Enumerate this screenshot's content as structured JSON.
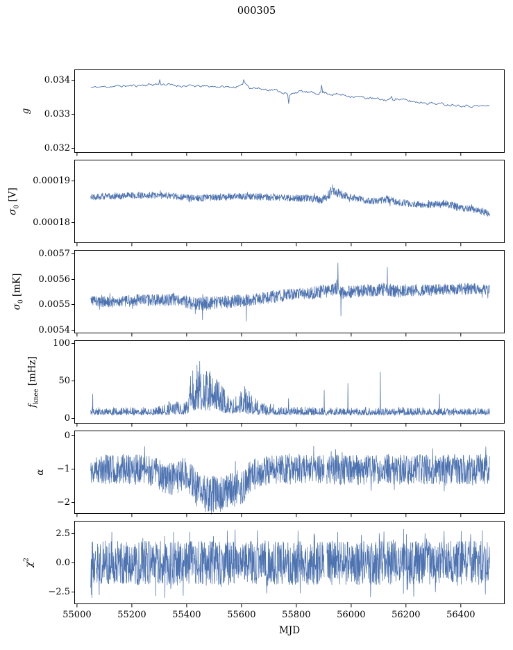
{
  "title": "000305",
  "accent_color": "#4c72b0",
  "axis_color": "#000000",
  "chart_data": {
    "type": "line",
    "title": "000305",
    "xlabel": "MJD",
    "xlim": [
      54990,
      56560
    ],
    "xticks": [
      55000,
      55200,
      55400,
      55600,
      55800,
      56000,
      56200,
      56400
    ],
    "xtick_labels": [
      "55000",
      "55200",
      "55400",
      "55600",
      "55800",
      "56000",
      "56200",
      "56400"
    ],
    "data_x_range": [
      55050,
      56505
    ],
    "line_color": "#4c72b0",
    "grid": false,
    "legend": "none",
    "panels": [
      {
        "id": "g",
        "ylabel": {
          "main": "g",
          "sub": "",
          "sup": "",
          "unit": ""
        },
        "ylim": [
          0.03185,
          0.0343
        ],
        "ytick_vals": [
          0.032,
          0.033,
          0.034
        ],
        "ytick_labels": [
          "0.032",
          "0.033",
          "0.034"
        ],
        "noise": "smooth",
        "samples": 400,
        "seed": 11,
        "stroke": 0.9,
        "tail": 0,
        "series": {
          "x": [
            55050,
            55120,
            55200,
            55260,
            55310,
            55350,
            55420,
            55500,
            55560,
            55600,
            55610,
            55630,
            55680,
            55720,
            55760,
            55775,
            55790,
            55820,
            55860,
            55900,
            55930,
            55970,
            56010,
            56050,
            56090,
            56130,
            56160,
            56190,
            56230,
            56270,
            56310,
            56350,
            56390,
            56430,
            56470,
            56505
          ],
          "mean": [
            0.03378,
            0.03381,
            0.03383,
            0.03386,
            0.03389,
            0.03384,
            0.03382,
            0.03381,
            0.03379,
            0.03381,
            0.03394,
            0.03379,
            0.03373,
            0.03371,
            0.03362,
            0.03352,
            0.03364,
            0.03366,
            0.03361,
            0.03364,
            0.03359,
            0.03356,
            0.03352,
            0.03348,
            0.03344,
            0.03341,
            0.03346,
            0.03341,
            0.03336,
            0.03334,
            0.03331,
            0.03328,
            0.03327,
            0.03324,
            0.03323,
            0.03324
          ],
          "amp": [
            2.5e-05,
            2.5e-05,
            2.8e-05,
            3.5e-05,
            3.8e-05,
            3e-05,
            2.8e-05,
            2.5e-05,
            2.5e-05,
            3e-05,
            4e-05,
            3e-05,
            2.8e-05,
            2.8e-05,
            3e-05,
            3.5e-05,
            3e-05,
            3e-05,
            3.2e-05,
            3.8e-05,
            3.5e-05,
            3.2e-05,
            3e-05,
            3e-05,
            3e-05,
            3.2e-05,
            3.5e-05,
            3.2e-05,
            3e-05,
            3e-05,
            3e-05,
            3e-05,
            3e-05,
            2.8e-05,
            2.5e-05,
            2.5e-05
          ]
        },
        "spikes": [
          [
            55302,
            0.03401
          ],
          [
            55608,
            0.03401
          ],
          [
            55772,
            0.03331
          ],
          [
            55893,
            0.03385
          ],
          [
            56148,
            0.03352
          ]
        ],
        "gaps": []
      },
      {
        "id": "sigma0_V",
        "ylabel": {
          "main": "σ",
          "sub": "0",
          "sup": "",
          "unit": " [V]"
        },
        "ylim": [
          0.000175,
          0.000195
        ],
        "ytick_vals": [
          0.00018,
          0.00019
        ],
        "ytick_labels": [
          "0.00018",
          "0.00019"
        ],
        "noise": "uniform",
        "samples": 1600,
        "seed": 22,
        "stroke": 0.75,
        "tail": 0.02,
        "series": {
          "x": [
            55050,
            55150,
            55250,
            55350,
            55420,
            55500,
            55600,
            55700,
            55780,
            55850,
            55890,
            55915,
            55930,
            55945,
            55965,
            55990,
            56020,
            56060,
            56100,
            56130,
            56150,
            56180,
            56220,
            56260,
            56300,
            56340,
            56370,
            56400,
            56440,
            56470,
            56505
          ],
          "mean": [
            0.0001862,
            0.0001864,
            0.0001866,
            0.0001864,
            0.0001858,
            0.0001861,
            0.0001863,
            0.0001861,
            0.0001859,
            0.0001858,
            0.0001854,
            0.0001864,
            0.0001876,
            0.0001873,
            0.0001867,
            0.0001862,
            0.0001858,
            0.0001853,
            0.0001851,
            0.0001856,
            0.0001852,
            0.0001848,
            0.0001845,
            0.0001842,
            0.0001843,
            0.0001846,
            0.0001841,
            0.0001835,
            0.0001832,
            0.0001827,
            0.0001822
          ],
          "amp": [
            8e-07,
            8e-07,
            8e-07,
            8e-07,
            9e-07,
            8e-07,
            8e-07,
            8e-07,
            8e-07,
            9e-07,
            1e-06,
            1.2e-06,
            1.2e-06,
            1.1e-06,
            1e-06,
            9e-07,
            8e-07,
            8e-07,
            8e-07,
            9e-07,
            9e-07,
            8e-07,
            8e-07,
            8e-07,
            8e-07,
            9e-07,
            9e-07,
            9e-07,
            8e-07,
            8e-07,
            8e-07
          ]
        },
        "spikes": [
          [
            55933,
            0.0001891
          ],
          [
            55412,
            0.0001849
          ]
        ],
        "gaps": []
      },
      {
        "id": "sigma0_mK",
        "ylabel": {
          "main": "σ",
          "sub": "0",
          "sup": "",
          "unit": " [mK]"
        },
        "ylim": [
          0.005385,
          0.005715
        ],
        "ytick_vals": [
          0.0054,
          0.0055,
          0.0056,
          0.0057
        ],
        "ytick_labels": [
          "0.0054",
          "0.0055",
          "0.0056",
          "0.0057"
        ],
        "noise": "uniform",
        "samples": 1600,
        "seed": 33,
        "stroke": 0.75,
        "tail": 0.03,
        "series": {
          "x": [
            55050,
            55100,
            55150,
            55220,
            55300,
            55360,
            55420,
            55460,
            55510,
            55560,
            55610,
            55660,
            55710,
            55760,
            55810,
            55860,
            55900,
            55930,
            55950,
            55970,
            55990,
            56020,
            56060,
            56100,
            56130,
            56160,
            56200,
            56250,
            56300,
            56350,
            56400,
            56450,
            56505
          ],
          "mean": [
            0.005518,
            0.00551,
            0.005512,
            0.005516,
            0.005518,
            0.005519,
            0.005506,
            0.005504,
            0.005508,
            0.005512,
            0.005516,
            0.005524,
            0.00553,
            0.005537,
            0.005542,
            0.005546,
            0.005552,
            0.005556,
            0.00556,
            0.005548,
            0.00555,
            0.005553,
            0.005556,
            0.005558,
            0.005562,
            0.005552,
            0.005556,
            0.005559,
            0.005557,
            0.00556,
            0.005561,
            0.005564,
            0.00556
          ],
          "amp": [
            2.2e-05,
            2.2e-05,
            2.2e-05,
            2.4e-05,
            2.4e-05,
            2.4e-05,
            2.6e-05,
            2.7e-05,
            2.6e-05,
            2.5e-05,
            2.4e-05,
            2.4e-05,
            2.4e-05,
            2.4e-05,
            2.4e-05,
            2.5e-05,
            2.7e-05,
            2.8e-05,
            2.8e-05,
            2.6e-05,
            2.5e-05,
            2.4e-05,
            2.5e-05,
            2.6e-05,
            2.7e-05,
            2.5e-05,
            2.4e-05,
            2.4e-05,
            2.3e-05,
            2.3e-05,
            2.3e-05,
            2.2e-05,
            2.2e-05
          ]
        },
        "spikes": [
          [
            55952,
            0.005665
          ],
          [
            55963,
            0.005455
          ],
          [
            55458,
            0.00544
          ],
          [
            56132,
            0.005648
          ],
          [
            55618,
            0.005435
          ]
        ],
        "gaps": []
      },
      {
        "id": "fknee",
        "ylabel": {
          "main": "f",
          "sub": "knee",
          "sup": "",
          "unit": " [mHz]"
        },
        "ylim": [
          -7,
          104
        ],
        "ytick_vals": [
          0,
          50,
          100
        ],
        "ytick_labels": [
          "0",
          "50",
          "100"
        ],
        "noise": "skew",
        "pow": 1.8,
        "jitter": 1.2,
        "samples": 1600,
        "seed": 44,
        "stroke": 0.75,
        "tail": 0,
        "series": {
          "x": [
            55050,
            55200,
            55320,
            55400,
            55412,
            55450,
            55520,
            55555,
            55572,
            55588,
            55612,
            55640,
            55670,
            55720,
            55800,
            56505
          ],
          "mean": [
            5.5,
            5.5,
            6,
            6.5,
            11,
            12,
            10,
            7,
            7,
            9,
            8,
            6.5,
            6,
            5.5,
            5.5,
            5.5
          ],
          "amp_x": [
            55050,
            55280,
            55320,
            55355,
            55385,
            55405,
            55420,
            55450,
            55490,
            55525,
            55550,
            55565,
            55580,
            55600,
            55620,
            55645,
            55675,
            55710,
            55760,
            55820,
            55880,
            56000,
            56100,
            56200,
            56300,
            56400,
            56505
          ],
          "amp": [
            9,
            9,
            15,
            20,
            13,
            24,
            62,
            64,
            52,
            38,
            26,
            18,
            22,
            38,
            34,
            22,
            17,
            13,
            11,
            10,
            9,
            9,
            9,
            9,
            9,
            8,
            8
          ]
        },
        "spikes": [
          [
            55057,
            33
          ],
          [
            55772,
            27
          ],
          [
            55902,
            38
          ],
          [
            55988,
            47
          ],
          [
            56106,
            62
          ],
          [
            56322,
            33
          ]
        ],
        "gaps": []
      },
      {
        "id": "alpha",
        "ylabel": {
          "main": "α",
          "sub": "",
          "sup": "",
          "unit": ""
        },
        "ylim": [
          -2.35,
          0.15
        ],
        "ytick_vals": [
          -2,
          -1,
          0
        ],
        "ytick_labels": [
          "−2",
          "−1",
          "0"
        ],
        "noise": "uniform",
        "samples": 1600,
        "seed": 55,
        "stroke": 0.75,
        "tail": 0.02,
        "series": {
          "x": [
            55050,
            55200,
            55280,
            55320,
            55360,
            55395,
            55420,
            55440,
            55470,
            55530,
            55570,
            55600,
            55625,
            55655,
            55700,
            55800,
            55900,
            56000,
            56100,
            56300,
            56505
          ],
          "mean": [
            -1.0,
            -1.0,
            -1.05,
            -1.3,
            -1.28,
            -1.1,
            -1.35,
            -1.65,
            -1.75,
            -1.72,
            -1.6,
            -1.55,
            -1.3,
            -1.1,
            -1.02,
            -1.0,
            -1.0,
            -1.03,
            -1.0,
            -1.0,
            -1.0
          ],
          "amp": [
            0.45,
            0.45,
            0.48,
            0.5,
            0.5,
            0.48,
            0.52,
            0.55,
            0.55,
            0.55,
            0.55,
            0.52,
            0.5,
            0.46,
            0.45,
            0.45,
            0.45,
            0.45,
            0.45,
            0.45,
            0.45
          ]
        },
        "spikes": [],
        "gaps": [
          [
            55902,
            55910
          ]
        ]
      },
      {
        "id": "chi2",
        "ylabel": {
          "main": "χ",
          "sub": "",
          "sup": "2",
          "unit": ""
        },
        "ylim": [
          -3.6,
          3.6
        ],
        "ytick_vals": [
          -2.5,
          0.0,
          2.5
        ],
        "ytick_labels": [
          "−2.5",
          "0.0",
          "2.5"
        ],
        "noise": "uniform",
        "samples": 1700,
        "seed": 66,
        "stroke": 0.75,
        "tail": 0.05,
        "series": {
          "x": [
            55050,
            56505
          ],
          "mean": [
            0,
            0
          ],
          "amp": [
            1.9,
            1.9
          ]
        },
        "spikes": [],
        "gaps": [
          [
            55902,
            55910
          ]
        ]
      }
    ]
  }
}
